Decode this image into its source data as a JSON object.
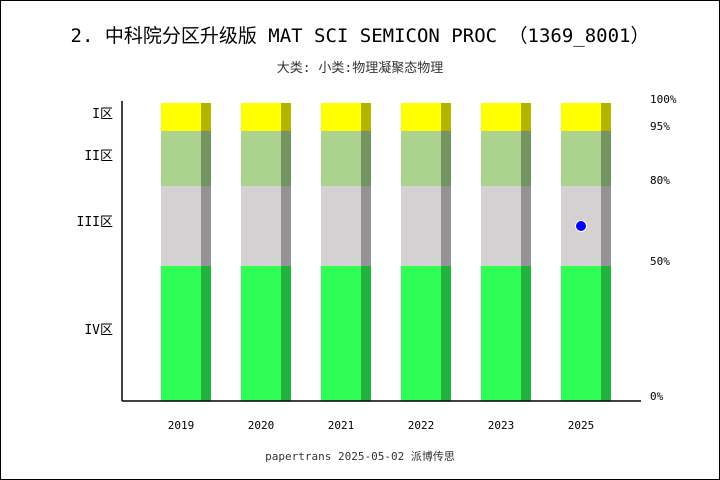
{
  "title": "2. 中科院分区升级版 MAT SCI SEMICON PROC （1369_8001）",
  "subtitle": "大类:  小类:物理凝聚态物理",
  "footer": "papertrans 2025-05-02 派博传思",
  "chart_data": {
    "type": "bar",
    "stacked": true,
    "categories": [
      "2019",
      "2020",
      "2021",
      "2022",
      "2023",
      "2025"
    ],
    "zones": [
      {
        "label": "IV区",
        "from": 0,
        "to": 50,
        "color": "#2efe56",
        "shade": "#22b33f"
      },
      {
        "label": "III区",
        "from": 50,
        "to": 80,
        "color": "#d3d1d2",
        "shade": "#949293"
      },
      {
        "label": "II区",
        "from": 80,
        "to": 95,
        "color": "#acd290",
        "shade": "#739461"
      },
      {
        "label": "I区",
        "from": 95,
        "to": 100,
        "color": "#ffff00",
        "shade": "#b4b400"
      }
    ],
    "percent_ticks": [
      "0%",
      "50%",
      "80%",
      "95%",
      "100%"
    ],
    "markers": [
      {
        "category": "2025",
        "zone": "III区",
        "percent": 65,
        "color": "#0000ff"
      }
    ],
    "grid": false
  }
}
